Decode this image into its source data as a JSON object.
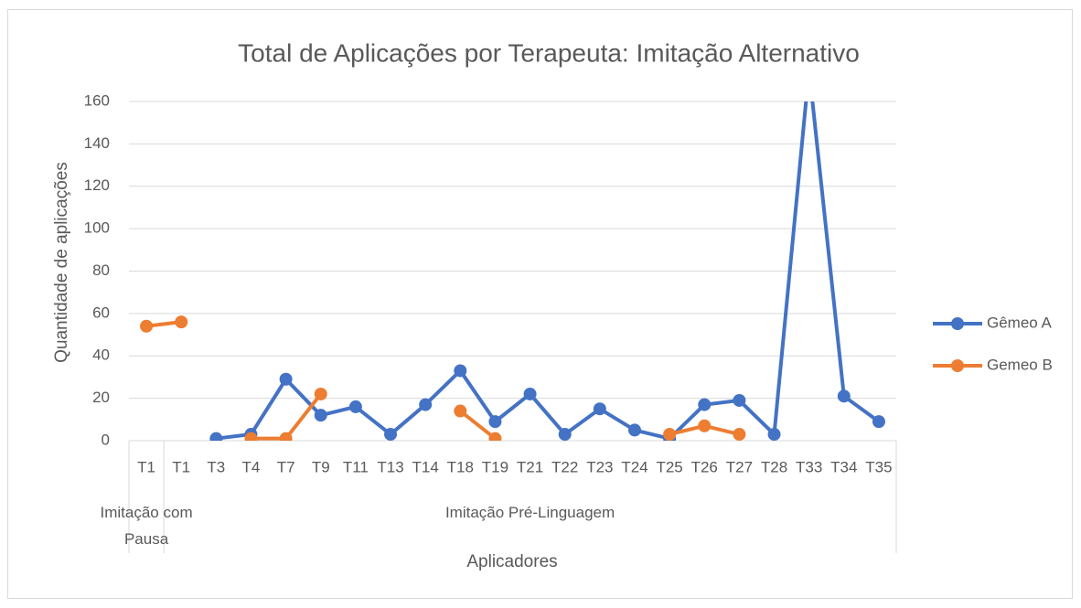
{
  "chart_data": {
    "type": "line",
    "title": "Total de Aplicações por Terapeuta: Imitação Alternativo",
    "y_label": "Quantidade de aplicações",
    "x_label": "Aplicadores",
    "categories": [
      "T1",
      "T1",
      "T3",
      "T4",
      "T7",
      "T9",
      "T11",
      "T13",
      "T14",
      "T18",
      "T19",
      "T21",
      "T22",
      "T23",
      "T24",
      "T25",
      "T26",
      "T27",
      "T28",
      "T33",
      "T34",
      "T35"
    ],
    "groups": [
      {
        "label": "Imitação com Pausa",
        "start": 0,
        "end": 0
      },
      {
        "label": "Imitação Pré-Linguagem",
        "start": 1,
        "end": 21
      }
    ],
    "series": [
      {
        "name": "Gêmeo A",
        "color": "#4472c4",
        "values": [
          null,
          null,
          1,
          3,
          29,
          12,
          16,
          3,
          17,
          33,
          9,
          22,
          3,
          15,
          5,
          1,
          17,
          19,
          3,
          175,
          21,
          9
        ]
      },
      {
        "name": "Gemeo B",
        "color": "#ed7d31",
        "values": [
          54,
          56,
          null,
          1,
          1,
          22,
          null,
          null,
          null,
          14,
          1,
          null,
          null,
          null,
          null,
          3,
          7,
          3,
          null,
          null,
          null,
          null
        ]
      }
    ],
    "ylim": [
      0,
      160
    ],
    "yticks": [
      0,
      20,
      40,
      60,
      80,
      100,
      120,
      140,
      160
    ],
    "grid": true,
    "legend": "right"
  }
}
